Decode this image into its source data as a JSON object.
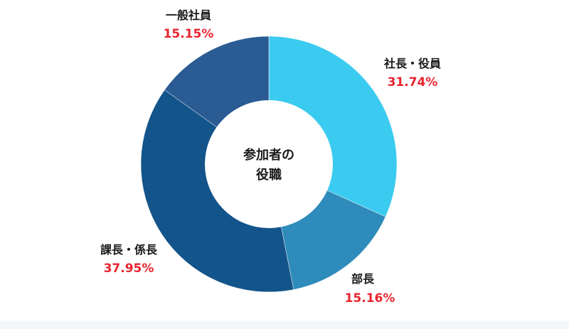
{
  "chart_data": {
    "type": "pie",
    "title": "",
    "center_label": [
      "参加者の",
      "役職"
    ],
    "slices": [
      {
        "label": "社長・役員",
        "value": 31.74,
        "value_text": "31.74%",
        "color": "#3ccbf0"
      },
      {
        "label": "部長",
        "value": 15.16,
        "value_text": "15.16%",
        "color": "#2e8bbb"
      },
      {
        "label": "課長・係長",
        "value": 37.95,
        "value_text": "37.95%",
        "color": "#13548a"
      },
      {
        "label": "一般社員",
        "value": 15.15,
        "value_text": "15.15%",
        "color": "#2b5b93"
      }
    ],
    "value_color": "#e8242f"
  }
}
